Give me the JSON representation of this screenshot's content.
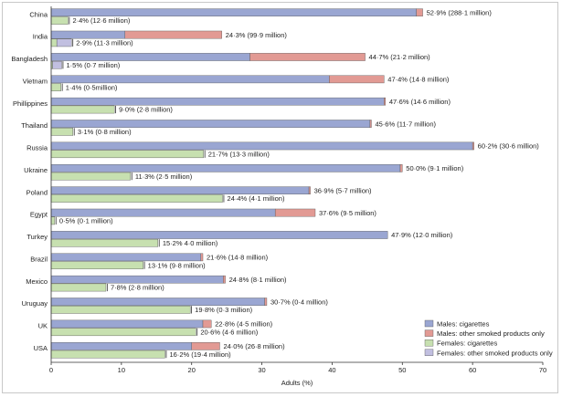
{
  "chart_data": {
    "type": "bar",
    "orientation": "horizontal",
    "xlabel": "Adults (%)",
    "xlim": [
      0,
      70
    ],
    "xticks": [
      0,
      10,
      20,
      30,
      40,
      50,
      60,
      70
    ],
    "grid": false,
    "legend_position": "bottom-right",
    "colors": {
      "males_cigarettes": "#9aa6d2",
      "males_other": "#e29a94",
      "females_cigarettes": "#c7e0b0",
      "females_other": "#c1bfe0"
    },
    "legend": [
      {
        "key": "males_cigarettes",
        "label": "Males: cigarettes"
      },
      {
        "key": "males_other",
        "label": "Males: other smoked products only"
      },
      {
        "key": "females_cigarettes",
        "label": "Females: cigarettes"
      },
      {
        "key": "females_other",
        "label": "Females: other smoked products only"
      }
    ],
    "categories": [
      "China",
      "India",
      "Bangladesh",
      "Vietnam",
      "Phillippines",
      "Thailand",
      "Russia",
      "Ukraine",
      "Poland",
      "Egypt",
      "Turkey",
      "Brazil",
      "Mexico",
      "Uruguay",
      "UK",
      "USA"
    ],
    "series": [
      {
        "key": "males_cigarettes",
        "values": [
          52.0,
          10.5,
          28.3,
          39.6,
          47.4,
          45.4,
          60.0,
          49.7,
          36.7,
          31.9,
          47.9,
          21.3,
          24.5,
          30.4,
          21.6,
          20.0
        ]
      },
      {
        "key": "males_other",
        "values": [
          0.9,
          13.8,
          16.4,
          7.8,
          0.2,
          0.2,
          0.2,
          0.3,
          0.2,
          5.7,
          0,
          0.3,
          0.3,
          0.3,
          1.2,
          4.0
        ]
      },
      {
        "key": "females_cigarettes",
        "values": [
          2.4,
          0.8,
          0.2,
          1.4,
          9.0,
          3.1,
          21.7,
          11.3,
          24.4,
          0.5,
          15.2,
          13.1,
          7.8,
          19.8,
          20.6,
          16.2
        ]
      },
      {
        "key": "females_other",
        "values": [
          0,
          2.1,
          1.3,
          0,
          0,
          0,
          0,
          0,
          0,
          0,
          0,
          0,
          0,
          0,
          0,
          0
        ]
      }
    ],
    "male_labels": [
      "52·9% (288·1 million)",
      "24·3% (99·9 million)",
      "44·7% (21·2 million)",
      "47·4% (14·8 million)",
      "47·6% (14·6 million)",
      "45·6% (11·7 million)",
      "60·2% (30·6 million)",
      "50·0% (9·1 million)",
      "36·9% (5·7 million)",
      "37·6% (9·5 million)",
      "47·9% (12·0 million)",
      "21·6% (14·8 million)",
      "24·8% (8·1 million)",
      "30·7% (0·4 million)",
      "22·8% (4·5 million)",
      "24·0% (26·8 million)"
    ],
    "female_labels": [
      "2·4% (12·6 million)",
      "2·9% (11·3 million)",
      "1·5% (0·7 million)",
      "1·4% (0·5million)",
      "9·0% (2·8 million)",
      "3·1% (0·8 million)",
      "21·7% (13·3 million)",
      "11·3% (2·5 million)",
      "24·4% (4·1 million)",
      "0·5% (0·1 million)",
      "15·2% 4·0 million)",
      "13·1% (9·8 million)",
      "7·8% (2·8 million)",
      "19·8% (0·3 million)",
      "20·6% (4·6 million)",
      "16·2% (19·4 million)"
    ]
  }
}
